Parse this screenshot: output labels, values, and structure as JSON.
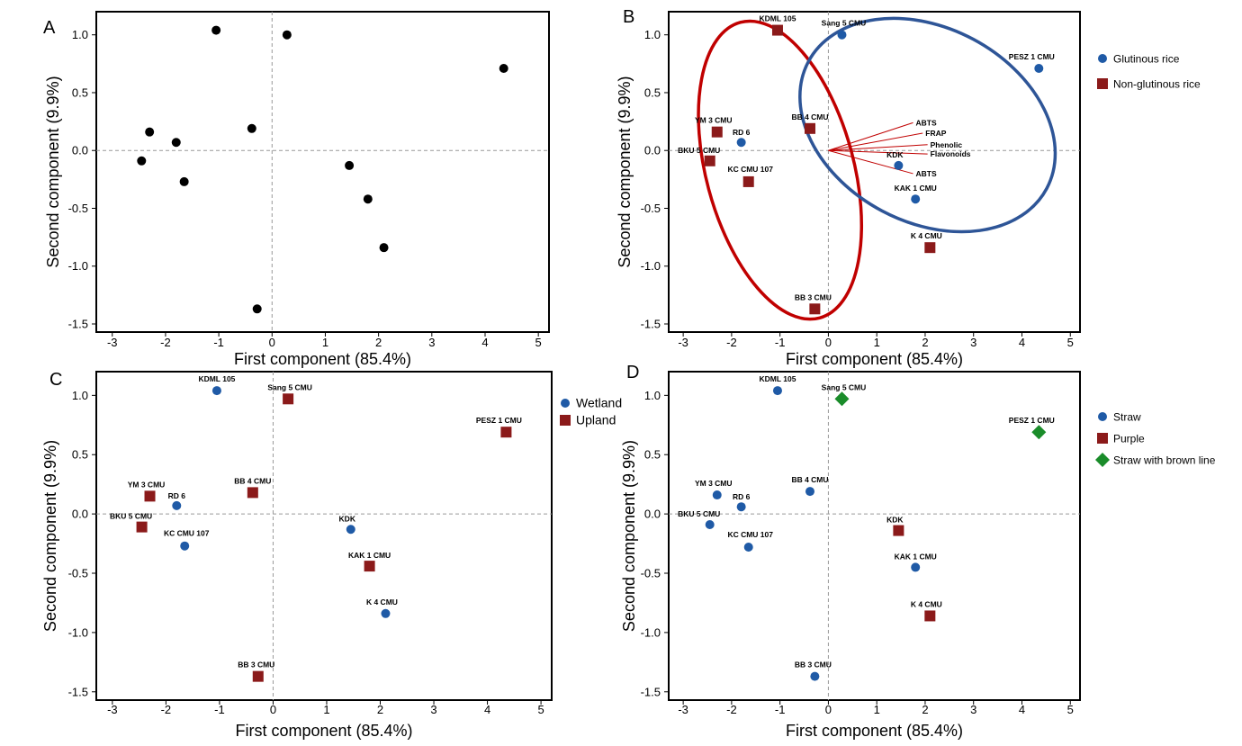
{
  "chart_data": [
    {
      "type": "scatter",
      "panel_label": "A",
      "xlabel": "First component (85.4%)",
      "ylabel": "Second component (9.9%)",
      "xlim": [
        -3.3,
        5.2
      ],
      "ylim": [
        -1.57,
        1.2
      ],
      "xticks": [
        -3,
        -2,
        -1,
        0,
        1,
        2,
        3,
        4,
        5
      ],
      "yticks": [
        1.0,
        0.5,
        0.0,
        -0.5,
        -1.0,
        -1.5
      ],
      "ytick_labels": [
        "1.0",
        "0.5",
        "0.0",
        "-0.5",
        "-1.0",
        "-1.5"
      ],
      "series": [
        {
          "color": "#000000",
          "marker": "circle",
          "points": [
            {
              "label": "",
              "x": -2.45,
              "y": -0.09
            },
            {
              "label": "",
              "x": -2.3,
              "y": 0.16
            },
            {
              "label": "",
              "x": -1.8,
              "y": 0.07
            },
            {
              "label": "",
              "x": -1.65,
              "y": -0.27
            },
            {
              "label": "",
              "x": -1.05,
              "y": 1.04
            },
            {
              "label": "",
              "x": -0.38,
              "y": 0.19
            },
            {
              "label": "",
              "x": 0.28,
              "y": 1.0
            },
            {
              "label": "",
              "x": -0.28,
              "y": -1.37
            },
            {
              "label": "",
              "x": 1.45,
              "y": -0.13
            },
            {
              "label": "",
              "x": 1.8,
              "y": -0.42
            },
            {
              "label": "",
              "x": 2.1,
              "y": -0.84
            },
            {
              "label": "",
              "x": 4.35,
              "y": 0.71
            }
          ]
        }
      ]
    },
    {
      "type": "scatter",
      "panel_label": "B",
      "xlabel": "First component (85.4%)",
      "ylabel": "Second component (9.9%)",
      "xlim": [
        -3.3,
        5.2
      ],
      "ylim": [
        -1.57,
        1.2
      ],
      "xticks": [
        -3,
        -2,
        -1,
        0,
        1,
        2,
        3,
        4,
        5
      ],
      "yticks": [
        1.0,
        0.5,
        0.0,
        -0.5,
        -1.0,
        -1.5
      ],
      "ytick_labels": [
        "1.0",
        "0.5",
        "0.0",
        "-0.5",
        "-1.0",
        "-1.5"
      ],
      "legend_position": "right",
      "series": [
        {
          "name": "Glutinous rice",
          "color": "#1f5aa6",
          "marker": "circle",
          "points": [
            {
              "label": "Sang 5 CMU",
              "x": 0.28,
              "y": 1.0
            },
            {
              "label": "PESZ 1 CMU",
              "x": 4.35,
              "y": 0.71
            },
            {
              "label": "RD 6",
              "x": -1.8,
              "y": 0.07
            },
            {
              "label": "KDK",
              "x": 1.45,
              "y": -0.13
            },
            {
              "label": "KAK 1 CMU",
              "x": 1.8,
              "y": -0.42
            }
          ]
        },
        {
          "name": "Non-glutinous rice",
          "color": "#8b1a1a",
          "marker": "square",
          "points": [
            {
              "label": "KDML 105",
              "x": -1.05,
              "y": 1.04
            },
            {
              "label": "YM 3 CMU",
              "x": -2.3,
              "y": 0.16
            },
            {
              "label": "BB 4 CMU",
              "x": -0.38,
              "y": 0.19
            },
            {
              "label": "BKU 5 CMU",
              "x": -2.45,
              "y": -0.09
            },
            {
              "label": "KC CMU 107",
              "x": -1.65,
              "y": -0.27
            },
            {
              "label": "K 4 CMU",
              "x": 2.1,
              "y": -0.84
            },
            {
              "label": "BB 3 CMU",
              "x": -0.28,
              "y": -1.37
            }
          ]
        }
      ],
      "vectors": [
        {
          "label": "ABTS",
          "x": 1.75,
          "y": 0.24
        },
        {
          "label": "FRAP",
          "x": 1.95,
          "y": 0.15
        },
        {
          "label": "Phenolic",
          "x": 2.05,
          "y": 0.05
        },
        {
          "label": "Flavonoids",
          "x": 2.05,
          "y": -0.03
        },
        {
          "label": "ABTS",
          "x": 1.75,
          "y": -0.2
        }
      ],
      "ellipses": [
        {
          "color": "#c00000",
          "group": "Non-glutinous rice"
        },
        {
          "color": "#2e5597",
          "group": "Glutinous rice"
        }
      ]
    },
    {
      "type": "scatter",
      "panel_label": "C",
      "xlabel": "First component (85.4%)",
      "ylabel": "Second component (9.9%)",
      "xlim": [
        -3.3,
        5.2
      ],
      "ylim": [
        -1.57,
        1.2
      ],
      "xticks": [
        -3,
        -2,
        -1,
        0,
        1,
        2,
        3,
        4,
        5
      ],
      "yticks": [
        1.0,
        0.5,
        0.0,
        -0.5,
        -1.0,
        -1.5
      ],
      "ytick_labels": [
        "1.0",
        "0.5",
        "0.0",
        "-0.5",
        "-1.0",
        "-1.5"
      ],
      "legend_position": "right",
      "series": [
        {
          "name": "Wetland",
          "color": "#1f5aa6",
          "marker": "circle",
          "points": [
            {
              "label": "KDML 105",
              "x": -1.05,
              "y": 1.04
            },
            {
              "label": "RD 6",
              "x": -1.8,
              "y": 0.07
            },
            {
              "label": "KC CMU 107",
              "x": -1.65,
              "y": -0.27
            },
            {
              "label": "KDK",
              "x": 1.45,
              "y": -0.13
            },
            {
              "label": "K 4 CMU",
              "x": 2.1,
              "y": -0.84
            }
          ]
        },
        {
          "name": "Upland",
          "color": "#8b1a1a",
          "marker": "square",
          "points": [
            {
              "label": "Sang 5 CMU",
              "x": 0.28,
              "y": 0.97
            },
            {
              "label": "PESZ 1 CMU",
              "x": 4.35,
              "y": 0.69
            },
            {
              "label": "YM 3 CMU",
              "x": -2.3,
              "y": 0.15
            },
            {
              "label": "BB 4 CMU",
              "x": -0.38,
              "y": 0.18
            },
            {
              "label": "BKU 5 CMU",
              "x": -2.45,
              "y": -0.11
            },
            {
              "label": "KAK 1 CMU",
              "x": 1.8,
              "y": -0.44
            },
            {
              "label": "BB 3 CMU",
              "x": -0.28,
              "y": -1.37
            }
          ]
        }
      ]
    },
    {
      "type": "scatter",
      "panel_label": "D",
      "xlabel": "First component (85.4%)",
      "ylabel": "Second component (9.9%)",
      "xlim": [
        -3.3,
        5.2
      ],
      "ylim": [
        -1.57,
        1.2
      ],
      "xticks": [
        -3,
        -2,
        -1,
        0,
        1,
        2,
        3,
        4,
        5
      ],
      "yticks": [
        1.0,
        0.5,
        0.0,
        -0.5,
        -1.0,
        -1.5
      ],
      "ytick_labels": [
        "1.0",
        "0.5",
        "0.0",
        "-0.5",
        "-1.0",
        "-1.5"
      ],
      "legend_position": "right",
      "series": [
        {
          "name": "Straw",
          "color": "#1f5aa6",
          "marker": "circle",
          "points": [
            {
              "label": "KDML 105",
              "x": -1.05,
              "y": 1.04
            },
            {
              "label": "YM 3 CMU",
              "x": -2.3,
              "y": 0.16
            },
            {
              "label": "RD 6",
              "x": -1.8,
              "y": 0.06
            },
            {
              "label": "BB 4 CMU",
              "x": -0.38,
              "y": 0.19
            },
            {
              "label": "BKU 5 CMU",
              "x": -2.45,
              "y": -0.09
            },
            {
              "label": "KC CMU 107",
              "x": -1.65,
              "y": -0.28
            },
            {
              "label": "KAK 1 CMU",
              "x": 1.8,
              "y": -0.45
            },
            {
              "label": "BB 3 CMU",
              "x": -0.28,
              "y": -1.37
            }
          ]
        },
        {
          "name": "Purple",
          "color": "#8b1a1a",
          "marker": "square",
          "points": [
            {
              "label": "KDK",
              "x": 1.45,
              "y": -0.14
            },
            {
              "label": "K 4 CMU",
              "x": 2.1,
              "y": -0.86
            }
          ]
        },
        {
          "name": "Straw with brown line",
          "color": "#1a8c2a",
          "marker": "diamond",
          "points": [
            {
              "label": "Sang 5 CMU",
              "x": 0.28,
              "y": 0.97
            },
            {
              "label": "PESZ 1 CMU",
              "x": 4.35,
              "y": 0.69
            }
          ]
        }
      ]
    }
  ]
}
